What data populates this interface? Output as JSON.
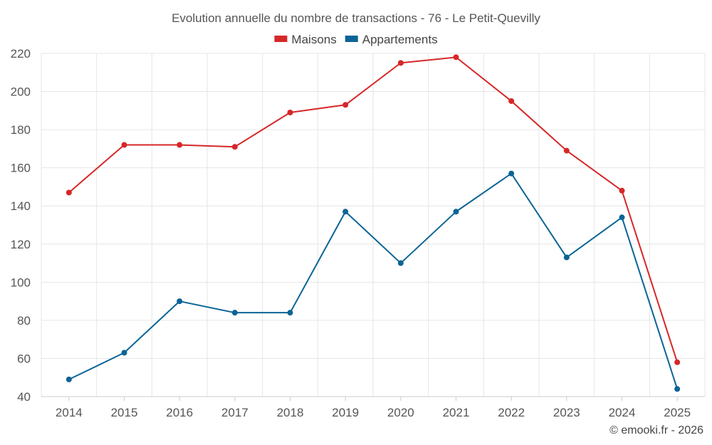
{
  "chart_data": {
    "type": "line",
    "title": "Evolution annuelle du nombre de transactions - 76 - Le Petit-Quevilly",
    "xlabel": "",
    "ylabel": "",
    "categories": [
      "2014",
      "2015",
      "2016",
      "2017",
      "2018",
      "2019",
      "2020",
      "2021",
      "2022",
      "2023",
      "2024",
      "2025"
    ],
    "ylim": [
      40,
      220
    ],
    "yticks": [
      40,
      60,
      80,
      100,
      120,
      140,
      160,
      180,
      200,
      220
    ],
    "grid": true,
    "legend_position": "top-center",
    "series": [
      {
        "name": "Maisons",
        "color": "#d62728",
        "values": [
          147,
          172,
          172,
          171,
          189,
          193,
          215,
          218,
          195,
          169,
          148,
          58
        ]
      },
      {
        "name": "Appartements",
        "color": "#0b6496",
        "values": [
          49,
          63,
          90,
          84,
          84,
          137,
          110,
          137,
          157,
          113,
          134,
          44
        ]
      }
    ]
  },
  "credit": "© emooki.fr - 2026"
}
